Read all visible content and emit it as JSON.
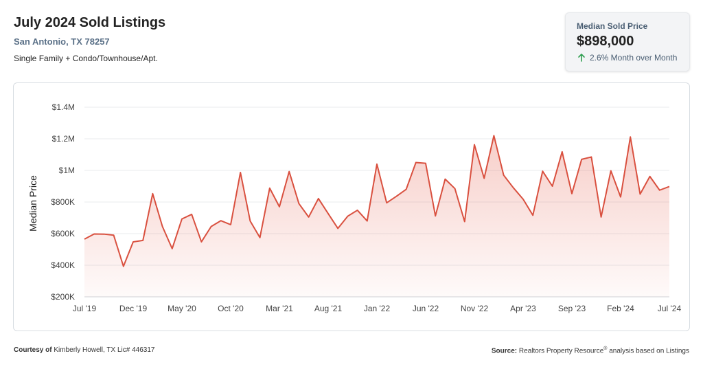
{
  "header": {
    "title": "July 2024 Sold Listings",
    "location": "San Antonio, TX 78257",
    "property_types": "Single Family + Condo/Townhouse/Apt."
  },
  "stat": {
    "label": "Median Sold Price",
    "value": "$898,000",
    "change": "2.6% Month over Month",
    "change_direction": "up",
    "arrow_color": "#2e9e4f"
  },
  "footer": {
    "courtesy_label": "Courtesy of",
    "courtesy_text": "Kimberly Howell, TX Lic# 446317",
    "source_label": "Source:",
    "source_text_pre": "Realtors Property Resource",
    "source_reg": "®",
    "source_text_post": "analysis based on Listings"
  },
  "chart_data": {
    "type": "area",
    "ylabel": "Median Price",
    "ylim": [
      200000,
      1400000
    ],
    "y_ticks": [
      200000,
      400000,
      600000,
      800000,
      1000000,
      1200000,
      1400000
    ],
    "y_tick_labels": [
      "$200K",
      "$400K",
      "$600K",
      "$800K",
      "$1M",
      "$1.2M",
      "$1.4M"
    ],
    "x_tick_labels": [
      "Jul '19",
      "Dec '19",
      "May '20",
      "Oct '20",
      "Mar '21",
      "Aug '21",
      "Jan '22",
      "Jun '22",
      "Nov '22",
      "Apr '23",
      "Sep '23",
      "Feb '24",
      "Jul '24"
    ],
    "x_tick_every": 5,
    "line_color": "#d9503f",
    "grid": true,
    "series": [
      {
        "values": [
          565000,
          598000,
          597000,
          590000,
          393000,
          548000,
          557000,
          853000,
          645000,
          505000,
          693000,
          722000,
          548000,
          645000,
          682000,
          657000,
          987000,
          680000,
          575000,
          888000,
          770000,
          993000,
          790000,
          705000,
          822000,
          727000,
          633000,
          710000,
          748000,
          680000,
          1040000,
          795000,
          836000,
          880000,
          1050000,
          1045000,
          712000,
          945000,
          885000,
          676000,
          1163000,
          950000,
          1220000,
          970000,
          890000,
          818000,
          716000,
          995000,
          900000,
          1118000,
          853000,
          1070000,
          1085000,
          705000,
          998000,
          832000,
          1212000,
          850000,
          962000,
          875000,
          898000
        ]
      }
    ]
  }
}
